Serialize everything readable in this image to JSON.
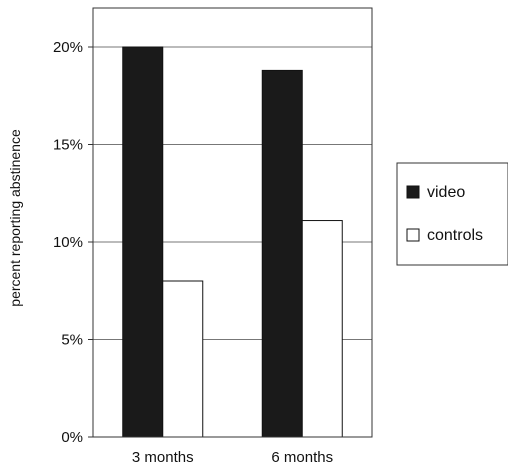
{
  "chart_data": {
    "type": "bar",
    "categories": [
      "3 months",
      "6 months"
    ],
    "series": [
      {
        "name": "video",
        "values": [
          20,
          18.8
        ]
      },
      {
        "name": "controls",
        "values": [
          8,
          11.1
        ]
      }
    ],
    "title": "",
    "xlabel": "",
    "ylabel": "percent reporting abstinence",
    "ylim": [
      0,
      22
    ],
    "yticks": [
      0,
      5,
      10,
      15,
      20
    ],
    "ytick_labels": [
      "0%",
      "5%",
      "10%",
      "15%",
      "20%"
    ],
    "grid": true,
    "legend_position": "right",
    "colors": {
      "video": "#1a1a1a",
      "controls": "#ffffff",
      "axis": "#333333",
      "grid": "#777777"
    }
  }
}
